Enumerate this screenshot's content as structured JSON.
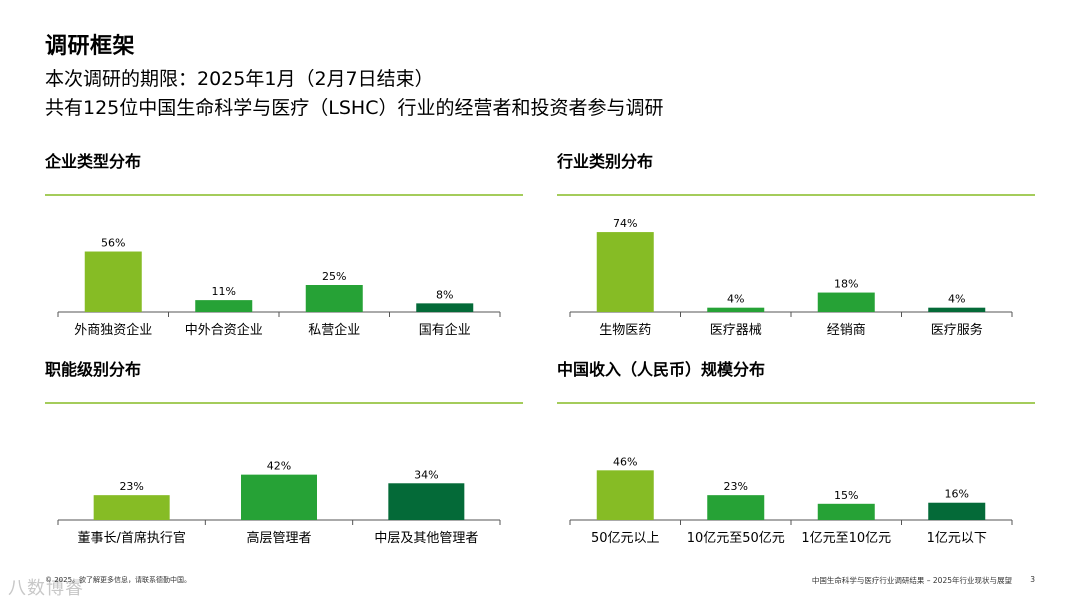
{
  "header": {
    "title": "调研框架",
    "subtitle1": "本次调研的期限：2025年1月（2月7日结束）",
    "subtitle2": "共有125位中国生命科学与医疗（LSHC）行业的经营者和投资者参与调研"
  },
  "colors": {
    "light_green": "#86bc25",
    "mid_green": "#26a236",
    "dark_green": "#046a38",
    "underline": "#86bc25",
    "axis": "#555555"
  },
  "chart_data": [
    {
      "type": "bar",
      "title": "企业类型分布",
      "categories": [
        "外商独资企业",
        "中外合资企业",
        "私营企业",
        "国有企业"
      ],
      "values": [
        56,
        11,
        25,
        8
      ],
      "labels": [
        "56%",
        "11%",
        "25%",
        "8%"
      ],
      "colors": [
        "#86bc25",
        "#26a236",
        "#26a236",
        "#046a38"
      ],
      "unit": "%",
      "ylim": [
        0,
        60
      ]
    },
    {
      "type": "bar",
      "title": "行业类别分布",
      "categories": [
        "生物医药",
        "医疗器械",
        "经销商",
        "医疗服务"
      ],
      "values": [
        74,
        4,
        18,
        4
      ],
      "labels": [
        "74%",
        "4%",
        "18%",
        "4%"
      ],
      "colors": [
        "#86bc25",
        "#26a236",
        "#26a236",
        "#046a38"
      ],
      "unit": "%",
      "ylim": [
        0,
        80
      ]
    },
    {
      "type": "bar",
      "title": "职能级别分布",
      "categories": [
        "董事长/首席执行官",
        "高层管理者",
        "中层及其他管理者"
      ],
      "values": [
        23,
        42,
        34
      ],
      "labels": [
        "23%",
        "42%",
        "34%"
      ],
      "colors": [
        "#86bc25",
        "#26a236",
        "#046a38"
      ],
      "unit": "%",
      "ylim": [
        0,
        45
      ]
    },
    {
      "type": "bar",
      "title": "中国收入（人民币）规模分布",
      "categories": [
        "50亿元以上",
        "10亿元至50亿元",
        "1亿元至10亿元",
        "1亿元以下"
      ],
      "values": [
        46,
        23,
        15,
        16
      ],
      "labels": [
        "46%",
        "23%",
        "15%",
        "16%"
      ],
      "colors": [
        "#86bc25",
        "#26a236",
        "#26a236",
        "#046a38"
      ],
      "unit": "%",
      "ylim": [
        0,
        50
      ]
    }
  ],
  "footer": {
    "left": "© 2025。欲了解更多信息，请联系德勤中国。",
    "right": "中国生命科学与医疗行业调研结果 – 2025年行业现状与展望",
    "page": "3",
    "watermark": "八数博睿"
  }
}
